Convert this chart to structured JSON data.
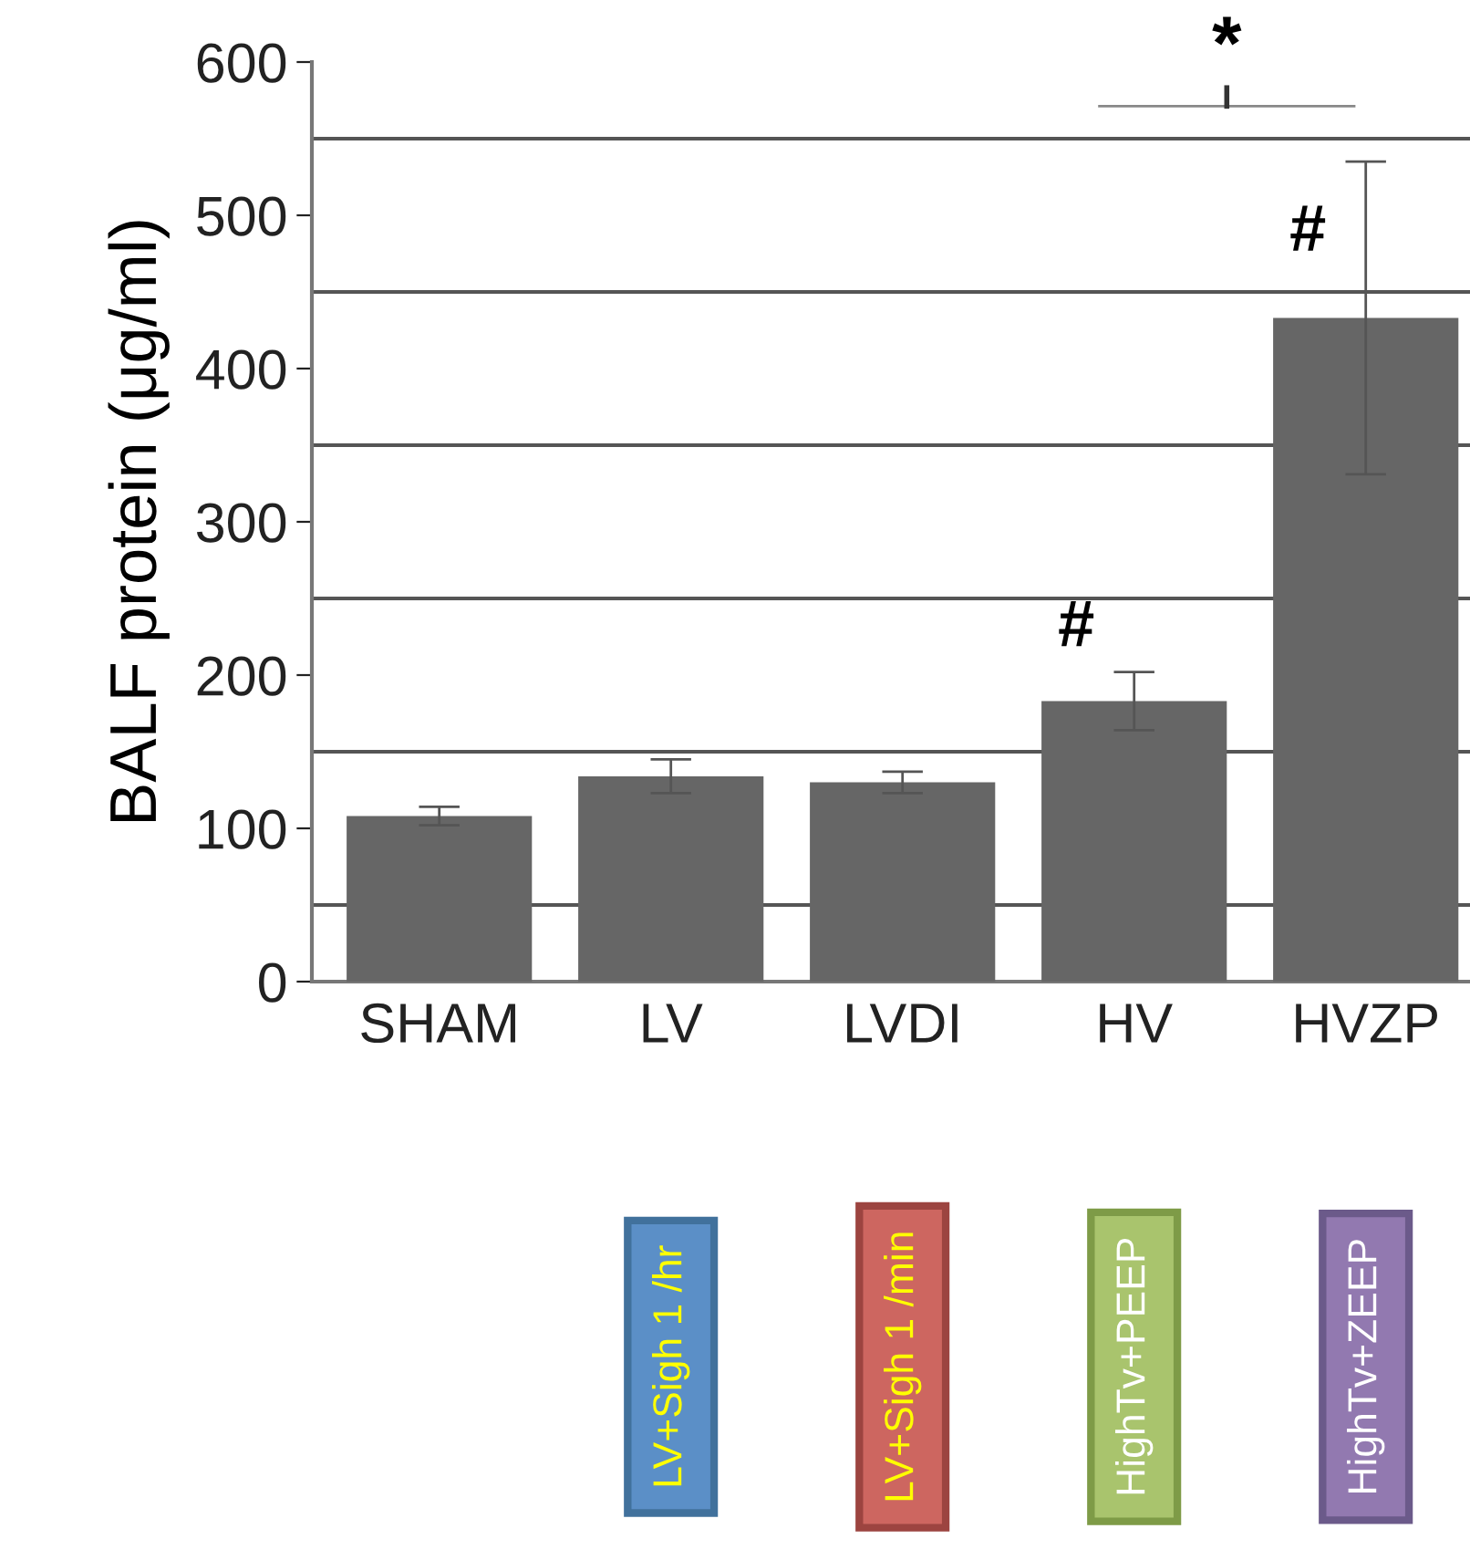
{
  "chart_data": {
    "type": "bar",
    "ylabel": "BALF protein (μg/ml)",
    "categories": [
      "SHAM",
      "LV",
      "LVDI",
      "HV",
      "HVZP"
    ],
    "values": [
      108,
      134,
      130,
      183,
      433
    ],
    "errors": [
      6,
      11,
      7,
      19,
      102
    ],
    "color": "#666666",
    "ylim": [
      0,
      600
    ],
    "yticks": [
      0,
      100,
      200,
      300,
      400,
      500,
      600
    ],
    "ref_lines": [
      {
        "axis": "y",
        "value": 50
      },
      {
        "axis": "y",
        "value": 150
      },
      {
        "axis": "y",
        "value": 250
      },
      {
        "axis": "y",
        "value": 350
      },
      {
        "axis": "y",
        "value": 450
      },
      {
        "axis": "y",
        "value": 550
      }
    ],
    "annotations": [
      "#",
      "#",
      "*",
      "LV+Sigh 1 /hr",
      "LV+Sigh 1 /min",
      "HighTv+PEEP",
      "HighTv+ZEEP"
    ]
  }
}
